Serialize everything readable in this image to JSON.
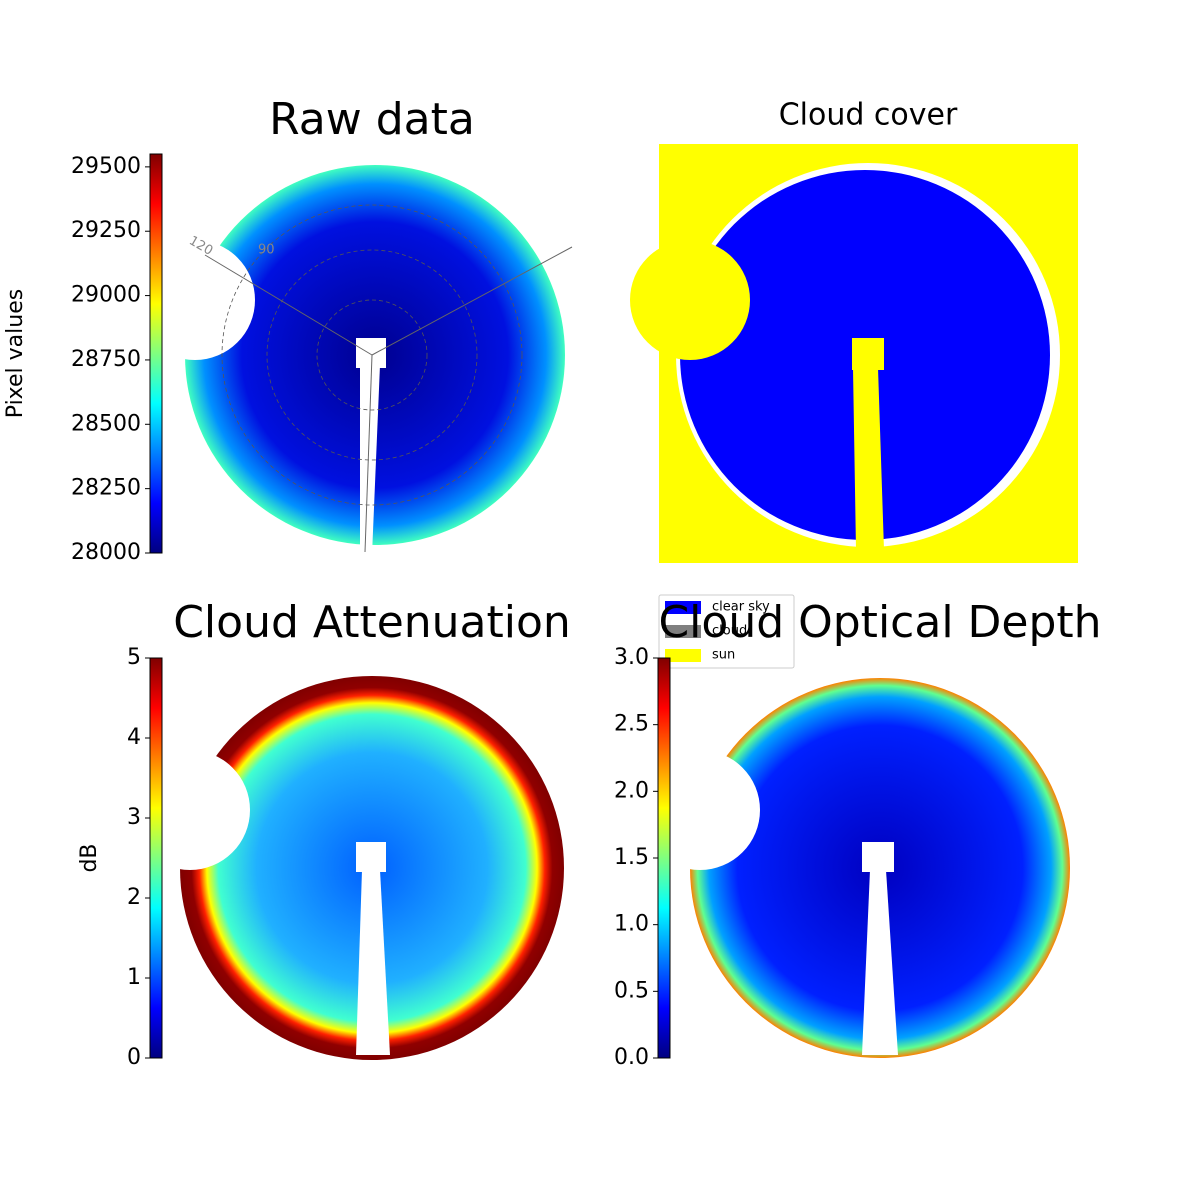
{
  "chart_data": [
    {
      "type": "image",
      "title": "Raw data",
      "colorbar": {
        "label": "Pixel values",
        "lim": [
          28000,
          29550
        ],
        "ticks": [
          28000,
          28250,
          28500,
          28750,
          29000,
          29250,
          29500
        ]
      },
      "annotations": [
        "120",
        "90"
      ]
    },
    {
      "type": "image",
      "title": "Cloud cover",
      "legend": [
        {
          "name": "clear sky",
          "color": "#0000ff"
        },
        {
          "name": "cloud",
          "color": "#808080"
        },
        {
          "name": "sun",
          "color": "#ffff00"
        }
      ]
    },
    {
      "type": "image",
      "title": "Cloud Attenuation",
      "colorbar": {
        "label": "dB",
        "lim": [
          0,
          5
        ],
        "ticks": [
          0,
          1,
          2,
          3,
          4,
          5
        ]
      }
    },
    {
      "type": "image",
      "title": "Cloud Optical Depth",
      "colorbar": {
        "lim": [
          0,
          3
        ],
        "ticks": [
          {
            "value": 0,
            "label": "0.0"
          },
          {
            "value": 0.5,
            "label": "0.5"
          },
          {
            "value": 1,
            "label": "1.0"
          },
          {
            "value": 1.5,
            "label": "1.5"
          },
          {
            "value": 2,
            "label": "2.0"
          },
          {
            "value": 2.5,
            "label": "2.5"
          },
          {
            "value": 3,
            "label": "3.0"
          }
        ]
      }
    }
  ]
}
